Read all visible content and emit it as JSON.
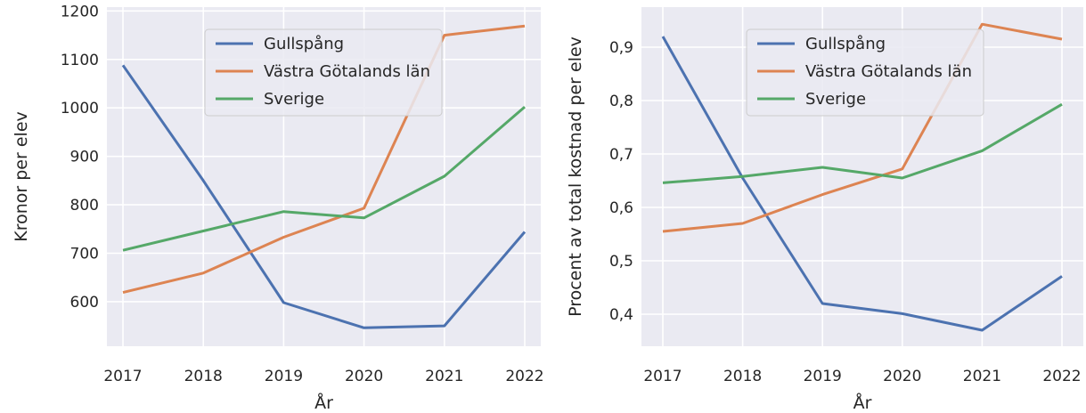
{
  "chart_data": [
    {
      "type": "line",
      "x": [
        2017,
        2018,
        2019,
        2020,
        2021,
        2022
      ],
      "xlabel": "År",
      "ylabel": "Kronor per elev",
      "ylim": [
        508,
        1208
      ],
      "yticks": [
        "600",
        "700",
        "800",
        "900",
        "1000",
        "1100",
        "1200"
      ],
      "ytick_values": [
        600,
        700,
        800,
        900,
        1000,
        1100,
        1200
      ],
      "xticks": [
        "2017",
        "2018",
        "2019",
        "2020",
        "2021",
        "2022"
      ],
      "legend_position": "top-center",
      "grid": true,
      "series": [
        {
          "name": "Gullspång",
          "color": "#4c72b0",
          "values": [
            1088,
            850,
            598,
            546,
            550,
            744
          ]
        },
        {
          "name": "Västra Götalands län",
          "color": "#dd8452",
          "values": [
            619,
            659,
            733,
            793,
            1150,
            1169
          ]
        },
        {
          "name": "Sverige",
          "color": "#55a868",
          "values": [
            706,
            746,
            786,
            773,
            859,
            1002
          ]
        }
      ]
    },
    {
      "type": "line",
      "x": [
        2017,
        2018,
        2019,
        2020,
        2021,
        2022
      ],
      "xlabel": "År",
      "ylabel": "Procent av total kostnad per elev",
      "ylim": [
        0.34,
        0.975
      ],
      "yticks": [
        "0,4",
        "0,5",
        "0,6",
        "0,7",
        "0,8",
        "0,9"
      ],
      "ytick_values": [
        0.4,
        0.5,
        0.6,
        0.7,
        0.8,
        0.9
      ],
      "xticks": [
        "2017",
        "2018",
        "2019",
        "2020",
        "2021",
        "2022"
      ],
      "legend_position": "top-center",
      "grid": true,
      "series": [
        {
          "name": "Gullspång",
          "color": "#4c72b0",
          "values": [
            0.92,
            0.655,
            0.42,
            0.401,
            0.37,
            0.471
          ]
        },
        {
          "name": "Västra Götalands län",
          "color": "#dd8452",
          "values": [
            0.555,
            0.57,
            0.624,
            0.672,
            0.943,
            0.915
          ]
        },
        {
          "name": "Sverige",
          "color": "#55a868",
          "values": [
            0.646,
            0.658,
            0.675,
            0.655,
            0.706,
            0.793
          ]
        }
      ]
    }
  ],
  "style": {
    "axes_background": "#eaeaf2",
    "grid_color": "#ffffff",
    "legend_background": "#eaeaf2",
    "legend_border": "#cccccc"
  }
}
